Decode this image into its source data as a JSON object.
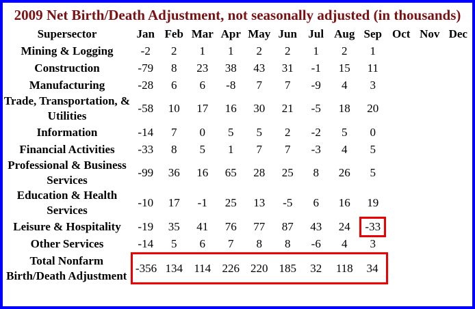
{
  "colors": {
    "frame_border": "#0000ff",
    "title_text": "#7b1113",
    "body_text": "#000000",
    "highlight_box": "#ee0000"
  },
  "chart_data": {
    "type": "table",
    "title": "2009 Net Birth/Death Adjustment, not seasonally adjusted (in thousands)",
    "column_headers": [
      "Supersector",
      "Jan",
      "Feb",
      "Mar",
      "Apr",
      "May",
      "Jun",
      "Jul",
      "Aug",
      "Sep",
      "Oct",
      "Nov",
      "Dec"
    ],
    "months_with_data": [
      "Jan",
      "Feb",
      "Mar",
      "Apr",
      "May",
      "Jun",
      "Jul",
      "Aug",
      "Sep"
    ],
    "series": [
      {
        "name": "Mining & Logging",
        "values": [
          -2,
          2,
          1,
          1,
          2,
          2,
          1,
          2,
          1
        ]
      },
      {
        "name": "Construction",
        "values": [
          -79,
          8,
          23,
          38,
          43,
          31,
          -1,
          15,
          11
        ]
      },
      {
        "name": "Manufacturing",
        "values": [
          -28,
          6,
          6,
          -8,
          7,
          7,
          -9,
          4,
          3
        ]
      },
      {
        "name": "Trade, Transportation, & Utilities",
        "values": [
          -58,
          10,
          17,
          16,
          30,
          21,
          -5,
          18,
          20
        ]
      },
      {
        "name": "Information",
        "values": [
          -14,
          7,
          0,
          5,
          5,
          2,
          -2,
          5,
          0
        ]
      },
      {
        "name": "Financial Activities",
        "values": [
          -33,
          8,
          5,
          1,
          7,
          7,
          -3,
          4,
          5
        ]
      },
      {
        "name": "Professional & Business Services",
        "values": [
          -99,
          36,
          16,
          65,
          28,
          25,
          8,
          26,
          5
        ]
      },
      {
        "name": "Education & Health Services",
        "values": [
          -10,
          17,
          -1,
          25,
          13,
          -5,
          6,
          16,
          19
        ]
      },
      {
        "name": "Leisure & Hospitality",
        "values": [
          -19,
          35,
          41,
          76,
          77,
          87,
          43,
          24,
          -33
        ],
        "highlight_col": 8,
        "highlight_cell_month": "Sep"
      },
      {
        "name": "Other Services",
        "values": [
          -14,
          5,
          6,
          7,
          8,
          8,
          -6,
          4,
          3
        ]
      },
      {
        "name": "Total Nonfarm Birth/Death Adjustment",
        "values": [
          -356,
          134,
          114,
          226,
          220,
          185,
          32,
          118,
          34
        ],
        "highlight_row": true
      }
    ],
    "layout": {
      "grid": "off",
      "empty_columns": [
        "Oct",
        "Nov",
        "Dec"
      ],
      "annotations": "Red box around Sep value of Leisure & Hospitality (-33) and around the Jan-Sep values of the Total Nonfarm Birth/Death Adjustment row"
    }
  }
}
